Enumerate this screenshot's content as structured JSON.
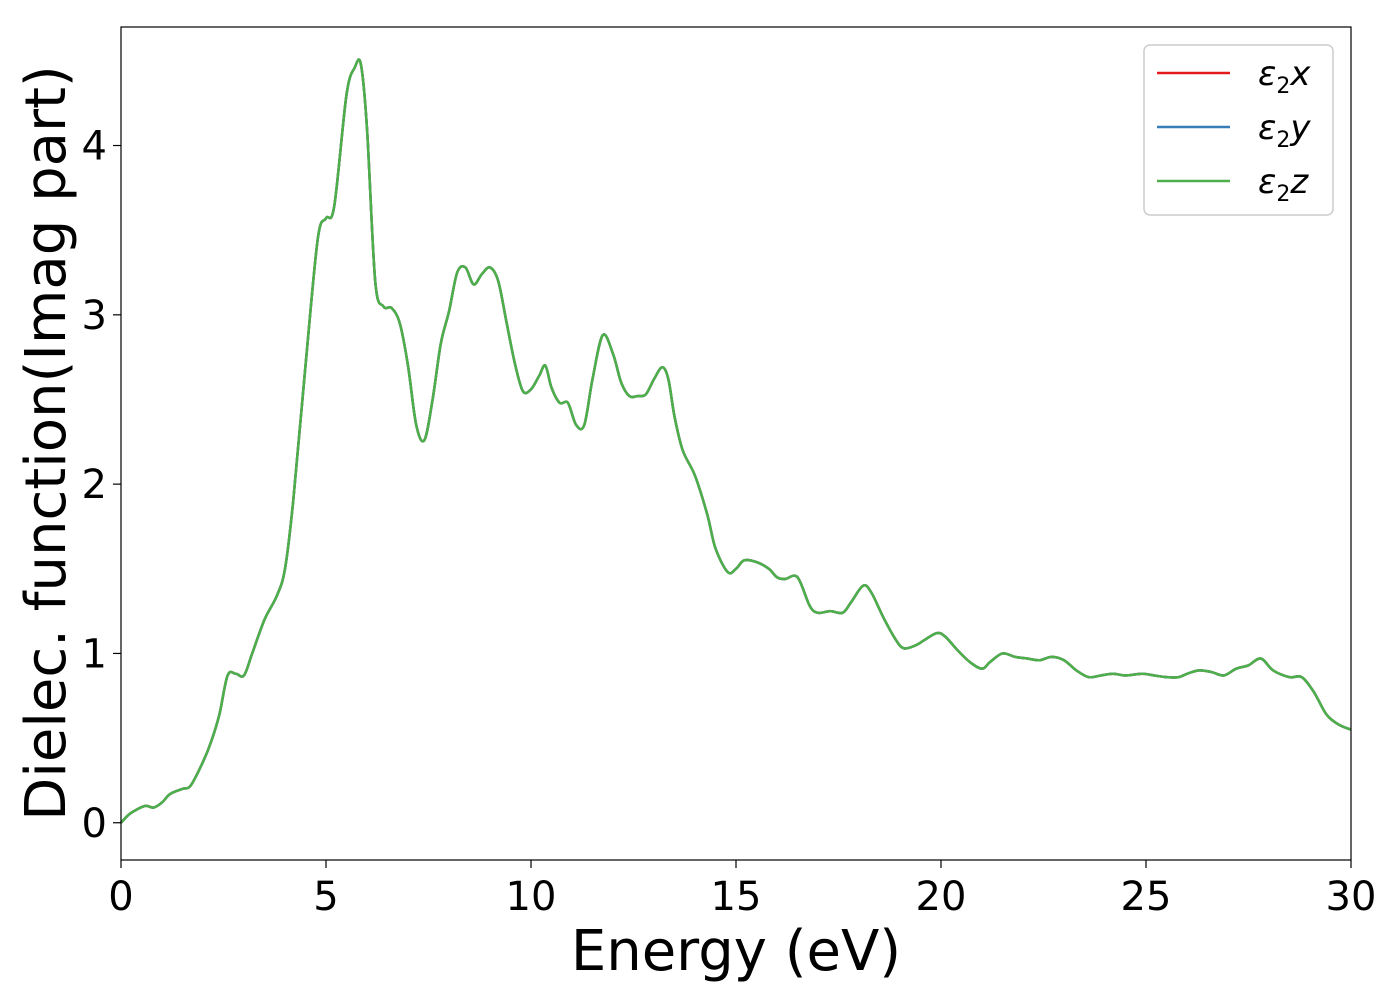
{
  "chart_data": {
    "type": "line",
    "title": "",
    "xlabel": "Energy (eV)",
    "ylabel": "Dielec. function(Imag part)",
    "xlim": [
      0,
      30
    ],
    "ylim": [
      -0.22,
      4.7
    ],
    "xticks": [
      0,
      5,
      10,
      15,
      20,
      25,
      30
    ],
    "yticks": [
      0,
      1,
      2,
      3,
      4
    ],
    "grid": false,
    "legend_position": "top-right",
    "x": [
      0,
      0.2,
      0.4,
      0.6,
      0.8,
      1.0,
      1.2,
      1.5,
      1.7,
      2.0,
      2.2,
      2.4,
      2.6,
      2.8,
      3.0,
      3.2,
      3.5,
      3.8,
      4.0,
      4.2,
      4.5,
      4.8,
      5.0,
      5.2,
      5.5,
      5.7,
      5.85,
      6.0,
      6.2,
      6.4,
      6.6,
      6.8,
      7.0,
      7.2,
      7.4,
      7.6,
      7.8,
      8.0,
      8.2,
      8.4,
      8.6,
      8.8,
      9.0,
      9.2,
      9.4,
      9.6,
      9.8,
      10.0,
      10.2,
      10.35,
      10.5,
      10.7,
      10.9,
      11.1,
      11.3,
      11.5,
      11.75,
      12.0,
      12.2,
      12.4,
      12.6,
      12.8,
      13.0,
      13.2,
      13.35,
      13.5,
      13.7,
      14.0,
      14.3,
      14.5,
      14.8,
      15.0,
      15.2,
      15.5,
      15.8,
      16.0,
      16.2,
      16.5,
      16.8,
      17.0,
      17.3,
      17.6,
      17.8,
      18.1,
      18.3,
      18.6,
      18.9,
      19.1,
      19.4,
      19.6,
      19.9,
      20.1,
      20.4,
      20.7,
      21.0,
      21.2,
      21.5,
      21.8,
      22.1,
      22.4,
      22.7,
      23.0,
      23.3,
      23.6,
      23.9,
      24.2,
      24.5,
      24.9,
      25.2,
      25.5,
      25.8,
      26.0,
      26.3,
      26.6,
      26.9,
      27.2,
      27.5,
      27.8,
      28.1,
      28.5,
      28.8,
      29.1,
      29.4,
      29.7,
      30.0
    ],
    "series": [
      {
        "name": "ε2x",
        "color": "#e41a1c",
        "values": [
          0.0,
          0.05,
          0.08,
          0.1,
          0.09,
          0.12,
          0.17,
          0.2,
          0.22,
          0.36,
          0.48,
          0.64,
          0.87,
          0.88,
          0.87,
          1.0,
          1.2,
          1.34,
          1.5,
          1.9,
          2.7,
          3.45,
          3.57,
          3.64,
          4.3,
          4.46,
          4.48,
          4.1,
          3.2,
          3.05,
          3.04,
          2.95,
          2.7,
          2.35,
          2.26,
          2.5,
          2.83,
          3.02,
          3.25,
          3.28,
          3.18,
          3.24,
          3.28,
          3.2,
          2.96,
          2.72,
          2.55,
          2.56,
          2.64,
          2.7,
          2.57,
          2.48,
          2.48,
          2.35,
          2.35,
          2.62,
          2.88,
          2.77,
          2.6,
          2.52,
          2.52,
          2.53,
          2.62,
          2.69,
          2.62,
          2.4,
          2.2,
          2.05,
          1.82,
          1.62,
          1.48,
          1.5,
          1.55,
          1.54,
          1.5,
          1.45,
          1.44,
          1.45,
          1.28,
          1.24,
          1.25,
          1.24,
          1.3,
          1.4,
          1.36,
          1.21,
          1.08,
          1.03,
          1.05,
          1.08,
          1.12,
          1.1,
          1.02,
          0.95,
          0.91,
          0.95,
          1.0,
          0.98,
          0.97,
          0.96,
          0.98,
          0.96,
          0.9,
          0.86,
          0.87,
          0.88,
          0.87,
          0.88,
          0.87,
          0.86,
          0.86,
          0.88,
          0.9,
          0.89,
          0.87,
          0.91,
          0.93,
          0.97,
          0.9,
          0.86,
          0.86,
          0.77,
          0.64,
          0.58,
          0.55
        ]
      },
      {
        "name": "ε2y",
        "color": "#377eb8",
        "values": [
          0.0,
          0.05,
          0.08,
          0.1,
          0.09,
          0.12,
          0.17,
          0.2,
          0.22,
          0.36,
          0.48,
          0.64,
          0.87,
          0.88,
          0.87,
          1.0,
          1.2,
          1.34,
          1.5,
          1.9,
          2.7,
          3.45,
          3.57,
          3.64,
          4.3,
          4.46,
          4.48,
          4.1,
          3.2,
          3.05,
          3.04,
          2.95,
          2.7,
          2.35,
          2.26,
          2.5,
          2.83,
          3.02,
          3.25,
          3.28,
          3.18,
          3.24,
          3.28,
          3.2,
          2.96,
          2.72,
          2.55,
          2.56,
          2.64,
          2.7,
          2.57,
          2.48,
          2.48,
          2.35,
          2.35,
          2.62,
          2.88,
          2.77,
          2.6,
          2.52,
          2.52,
          2.53,
          2.62,
          2.69,
          2.62,
          2.4,
          2.2,
          2.05,
          1.82,
          1.62,
          1.48,
          1.5,
          1.55,
          1.54,
          1.5,
          1.45,
          1.44,
          1.45,
          1.28,
          1.24,
          1.25,
          1.24,
          1.3,
          1.4,
          1.36,
          1.21,
          1.08,
          1.03,
          1.05,
          1.08,
          1.12,
          1.1,
          1.02,
          0.95,
          0.91,
          0.95,
          1.0,
          0.98,
          0.97,
          0.96,
          0.98,
          0.96,
          0.9,
          0.86,
          0.87,
          0.88,
          0.87,
          0.88,
          0.87,
          0.86,
          0.86,
          0.88,
          0.9,
          0.89,
          0.87,
          0.91,
          0.93,
          0.97,
          0.9,
          0.86,
          0.86,
          0.77,
          0.64,
          0.58,
          0.55
        ]
      },
      {
        "name": "ε2z",
        "color": "#4daf4a",
        "values": [
          0.0,
          0.05,
          0.08,
          0.1,
          0.09,
          0.12,
          0.17,
          0.2,
          0.22,
          0.36,
          0.48,
          0.64,
          0.87,
          0.88,
          0.87,
          1.0,
          1.2,
          1.34,
          1.5,
          1.9,
          2.7,
          3.45,
          3.57,
          3.64,
          4.3,
          4.46,
          4.48,
          4.1,
          3.2,
          3.05,
          3.04,
          2.95,
          2.7,
          2.35,
          2.26,
          2.5,
          2.83,
          3.02,
          3.25,
          3.28,
          3.18,
          3.24,
          3.28,
          3.2,
          2.96,
          2.72,
          2.55,
          2.56,
          2.64,
          2.7,
          2.57,
          2.48,
          2.48,
          2.35,
          2.35,
          2.62,
          2.88,
          2.77,
          2.6,
          2.52,
          2.52,
          2.53,
          2.62,
          2.69,
          2.62,
          2.4,
          2.2,
          2.05,
          1.82,
          1.62,
          1.48,
          1.5,
          1.55,
          1.54,
          1.5,
          1.45,
          1.44,
          1.45,
          1.28,
          1.24,
          1.25,
          1.24,
          1.3,
          1.4,
          1.36,
          1.21,
          1.08,
          1.03,
          1.05,
          1.08,
          1.12,
          1.1,
          1.02,
          0.95,
          0.91,
          0.95,
          1.0,
          0.98,
          0.97,
          0.96,
          0.98,
          0.96,
          0.9,
          0.86,
          0.87,
          0.88,
          0.87,
          0.88,
          0.87,
          0.86,
          0.86,
          0.88,
          0.9,
          0.89,
          0.87,
          0.91,
          0.93,
          0.97,
          0.9,
          0.86,
          0.86,
          0.77,
          0.64,
          0.58,
          0.55
        ]
      }
    ]
  }
}
